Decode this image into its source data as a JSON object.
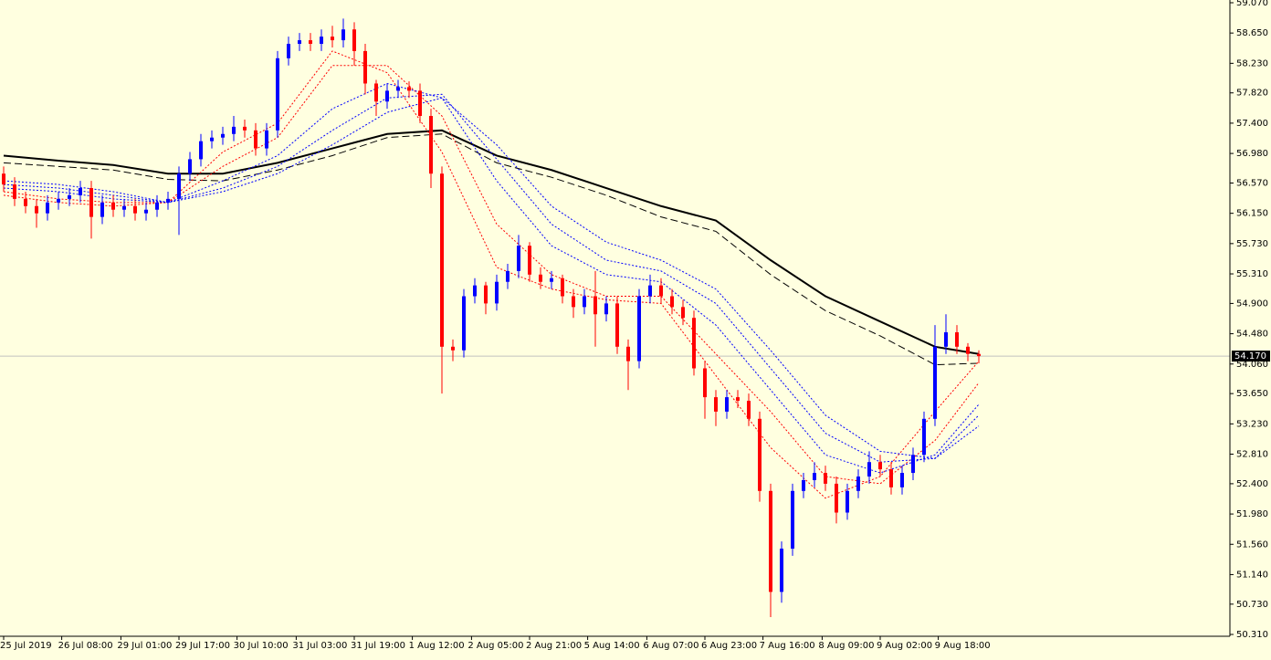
{
  "chart_data": {
    "type": "candlestick",
    "background": "#ffffe0",
    "up_color": "#0000ff",
    "down_color": "#ff0000",
    "candles": {
      "open": [
        56.7,
        56.55,
        56.35,
        56.25,
        56.15,
        56.3,
        56.35,
        56.4,
        56.5,
        56.1,
        56.3,
        56.2,
        56.25,
        56.15,
        56.2,
        56.3,
        56.35,
        56.7,
        56.9,
        57.15,
        57.2,
        57.25,
        57.35,
        57.3,
        57.05,
        57.3,
        58.3,
        58.5,
        58.55,
        58.5,
        58.6,
        58.55,
        58.7,
        58.4,
        57.95,
        57.7,
        57.85,
        57.9,
        57.85,
        57.5,
        56.7,
        54.3,
        54.25,
        55.0,
        55.15,
        54.9,
        55.2,
        55.35,
        55.7,
        55.3,
        55.2,
        55.25,
        55.0,
        54.85,
        55.0,
        54.75,
        54.9,
        54.3,
        54.1,
        55.0,
        55.15,
        55.0,
        54.85,
        54.7,
        54.0,
        53.6,
        53.4,
        53.6,
        53.55,
        53.3,
        52.3,
        50.9,
        51.5,
        52.3,
        52.45,
        52.55,
        52.4,
        52.0,
        52.3,
        52.5,
        52.7,
        52.6,
        52.35,
        52.55,
        52.8,
        53.3,
        54.3,
        54.5,
        54.3,
        54.2
      ],
      "high": [
        56.8,
        56.65,
        56.45,
        56.35,
        56.4,
        56.45,
        56.5,
        56.6,
        56.6,
        56.4,
        56.4,
        56.35,
        56.35,
        56.3,
        56.4,
        56.45,
        56.8,
        57.0,
        57.25,
        57.3,
        57.35,
        57.5,
        57.45,
        57.4,
        57.4,
        58.4,
        58.6,
        58.65,
        58.65,
        58.7,
        58.75,
        58.85,
        58.8,
        58.5,
        58.0,
        57.95,
        58.0,
        57.98,
        57.95,
        57.6,
        56.8,
        54.4,
        55.1,
        55.25,
        55.2,
        55.3,
        55.45,
        55.85,
        55.75,
        55.4,
        55.35,
        55.3,
        55.1,
        55.1,
        55.35,
        55.0,
        55.0,
        54.4,
        55.1,
        55.3,
        55.25,
        55.1,
        54.95,
        54.8,
        54.1,
        53.7,
        53.7,
        53.7,
        53.65,
        53.4,
        52.4,
        51.6,
        52.4,
        52.55,
        52.7,
        52.65,
        52.5,
        52.4,
        52.6,
        52.85,
        52.8,
        52.7,
        52.65,
        52.9,
        53.4,
        54.6,
        54.75,
        54.6,
        54.35,
        54.25
      ],
      "low": [
        56.45,
        56.25,
        56.15,
        55.95,
        56.05,
        56.2,
        56.25,
        56.3,
        55.8,
        56.0,
        56.1,
        56.1,
        56.05,
        56.05,
        56.1,
        56.2,
        55.85,
        56.6,
        56.8,
        57.05,
        57.1,
        57.15,
        57.2,
        56.95,
        56.95,
        57.2,
        58.2,
        58.4,
        58.4,
        58.4,
        58.45,
        58.45,
        58.2,
        57.8,
        57.5,
        57.6,
        57.75,
        57.75,
        57.4,
        56.5,
        53.65,
        54.1,
        54.15,
        54.9,
        54.75,
        54.8,
        55.1,
        55.25,
        55.2,
        55.1,
        55.1,
        54.9,
        54.7,
        54.75,
        54.3,
        54.65,
        54.2,
        53.7,
        54.0,
        54.9,
        54.9,
        54.75,
        54.6,
        53.9,
        53.3,
        53.2,
        53.3,
        53.45,
        53.2,
        52.15,
        50.55,
        50.75,
        51.4,
        52.2,
        52.35,
        52.3,
        51.85,
        51.9,
        52.2,
        52.4,
        52.5,
        52.25,
        52.25,
        52.45,
        52.7,
        53.2,
        54.2,
        54.2,
        54.1,
        54.07
      ],
      "close": [
        56.55,
        56.35,
        56.25,
        56.15,
        56.3,
        56.35,
        56.4,
        56.5,
        56.1,
        56.3,
        56.2,
        56.25,
        56.15,
        56.2,
        56.3,
        56.35,
        56.7,
        56.9,
        57.15,
        57.2,
        57.25,
        57.35,
        57.3,
        57.05,
        57.3,
        58.3,
        58.5,
        58.55,
        58.5,
        58.6,
        58.55,
        58.7,
        58.4,
        57.95,
        57.7,
        57.85,
        57.9,
        57.85,
        57.5,
        56.7,
        54.3,
        54.25,
        55.0,
        55.15,
        54.9,
        55.2,
        55.35,
        55.7,
        55.3,
        55.2,
        55.25,
        55.0,
        54.85,
        55.0,
        54.75,
        54.9,
        54.3,
        54.1,
        55.0,
        55.15,
        55.0,
        54.85,
        54.7,
        54.0,
        53.6,
        53.4,
        53.6,
        53.55,
        53.3,
        52.3,
        50.9,
        51.5,
        52.3,
        52.45,
        52.55,
        52.4,
        52.0,
        52.3,
        52.5,
        52.7,
        52.6,
        52.35,
        52.55,
        52.8,
        53.3,
        54.3,
        54.5,
        54.3,
        54.2,
        54.17
      ]
    },
    "series": [
      {
        "color": "#000000",
        "style": "solid",
        "x": [
          0,
          5,
          10,
          15,
          20,
          25,
          30,
          35,
          40,
          45,
          50,
          55,
          60,
          65,
          70,
          75,
          80,
          85,
          89
        ],
        "values": [
          56.95,
          56.88,
          56.82,
          56.7,
          56.7,
          56.85,
          57.05,
          57.25,
          57.3,
          56.95,
          56.75,
          56.5,
          56.25,
          56.05,
          55.5,
          55.0,
          54.65,
          54.3,
          54.2
        ]
      },
      {
        "color": "#000000",
        "style": "dashed",
        "x": [
          0,
          5,
          10,
          15,
          20,
          25,
          30,
          35,
          40,
          45,
          50,
          55,
          60,
          65,
          70,
          75,
          80,
          85,
          89
        ],
        "values": [
          56.85,
          56.8,
          56.75,
          56.62,
          56.6,
          56.75,
          56.95,
          57.2,
          57.25,
          56.85,
          56.65,
          56.4,
          56.1,
          55.9,
          55.3,
          54.8,
          54.45,
          54.05,
          54.07
        ]
      },
      {
        "color": "#ff0000",
        "style": "dotted",
        "x": [
          0,
          5,
          10,
          15,
          20,
          25,
          30,
          35,
          40,
          45,
          50,
          55,
          60,
          65,
          70,
          75,
          80,
          85,
          89
        ],
        "values": [
          56.4,
          56.3,
          56.25,
          56.3,
          57.0,
          57.4,
          58.4,
          58.1,
          57.0,
          55.4,
          55.1,
          54.95,
          54.9,
          53.9,
          52.9,
          52.2,
          52.5,
          53.4,
          54.1
        ]
      },
      {
        "color": "#ff0000",
        "style": "dotted",
        "x": [
          0,
          5,
          10,
          15,
          20,
          25,
          30,
          35,
          40,
          45,
          50,
          55,
          60,
          65,
          70,
          75,
          80,
          85,
          89
        ],
        "values": [
          56.45,
          56.35,
          56.3,
          56.3,
          56.8,
          57.2,
          58.2,
          58.2,
          57.5,
          56.0,
          55.3,
          55.0,
          55.0,
          54.2,
          53.4,
          52.5,
          52.4,
          53.0,
          53.8
        ]
      },
      {
        "color": "#0000ff",
        "style": "dotted",
        "x": [
          0,
          5,
          10,
          15,
          20,
          25,
          30,
          35,
          40,
          45,
          50,
          55,
          60,
          65,
          70,
          75,
          80,
          85,
          89
        ],
        "values": [
          56.5,
          56.45,
          56.35,
          56.3,
          56.6,
          56.95,
          57.6,
          57.95,
          57.75,
          56.6,
          55.7,
          55.3,
          55.2,
          54.6,
          53.7,
          52.8,
          52.55,
          52.8,
          53.5
        ]
      },
      {
        "color": "#0000ff",
        "style": "dotted",
        "x": [
          0,
          5,
          10,
          15,
          20,
          25,
          30,
          35,
          40,
          45,
          50,
          55,
          60,
          65,
          70,
          75,
          80,
          85,
          89
        ],
        "values": [
          56.55,
          56.5,
          56.4,
          56.3,
          56.5,
          56.8,
          57.3,
          57.75,
          57.8,
          56.9,
          56.0,
          55.5,
          55.35,
          54.9,
          54.0,
          53.1,
          52.7,
          52.75,
          53.35
        ]
      },
      {
        "color": "#0000ff",
        "style": "dotted",
        "x": [
          0,
          5,
          10,
          15,
          20,
          25,
          30,
          35,
          40,
          45,
          50,
          55,
          60,
          65,
          70,
          75,
          80,
          85,
          89
        ],
        "values": [
          56.6,
          56.55,
          56.45,
          56.3,
          56.45,
          56.7,
          57.1,
          57.55,
          57.75,
          57.1,
          56.25,
          55.75,
          55.5,
          55.1,
          54.25,
          53.35,
          52.85,
          52.75,
          53.2
        ]
      }
    ],
    "current_price": {
      "value": 54.17,
      "label": "54.170"
    },
    "ylim": [
      50.31,
      59.07
    ],
    "yticks": [
      {
        "value": 59.07,
        "label": "59.070"
      },
      {
        "value": 58.65,
        "label": "58.650"
      },
      {
        "value": 58.23,
        "label": "58.230"
      },
      {
        "value": 57.82,
        "label": "57.820"
      },
      {
        "value": 57.4,
        "label": "57.400"
      },
      {
        "value": 56.98,
        "label": "56.980"
      },
      {
        "value": 56.57,
        "label": "56.570"
      },
      {
        "value": 56.15,
        "label": "56.150"
      },
      {
        "value": 55.73,
        "label": "55.730"
      },
      {
        "value": 55.31,
        "label": "55.310"
      },
      {
        "value": 54.9,
        "label": "54.900"
      },
      {
        "value": 54.48,
        "label": "54.480"
      },
      {
        "value": 54.06,
        "label": "54.060"
      },
      {
        "value": 53.65,
        "label": "53.650"
      },
      {
        "value": 53.23,
        "label": "53.230"
      },
      {
        "value": 52.81,
        "label": "52.810"
      },
      {
        "value": 52.4,
        "label": "52.400"
      },
      {
        "value": 51.98,
        "label": "51.980"
      },
      {
        "value": 51.56,
        "label": "51.560"
      },
      {
        "value": 51.14,
        "label": "51.140"
      },
      {
        "value": 50.73,
        "label": "50.730"
      },
      {
        "value": 50.31,
        "label": "50.310"
      }
    ],
    "xticks": [
      {
        "value": 0,
        "label": "25 Jul 2019"
      },
      {
        "value": 5.3,
        "label": "26 Jul 08:00"
      },
      {
        "value": 10.7,
        "label": "29 Jul 01:00"
      },
      {
        "value": 16,
        "label": "29 Jul 17:00"
      },
      {
        "value": 21.3,
        "label": "30 Jul 10:00"
      },
      {
        "value": 26.7,
        "label": "31 Jul 03:00"
      },
      {
        "value": 32,
        "label": "31 Jul 19:00"
      },
      {
        "value": 37.3,
        "label": "1 Aug 12:00"
      },
      {
        "value": 42.7,
        "label": "2 Aug 05:00"
      },
      {
        "value": 48,
        "label": "2 Aug 21:00"
      },
      {
        "value": 53.3,
        "label": "5 Aug 14:00"
      },
      {
        "value": 58.7,
        "label": "6 Aug 07:00"
      },
      {
        "value": 64,
        "label": "6 Aug 23:00"
      },
      {
        "value": 69.3,
        "label": "7 Aug 16:00"
      },
      {
        "value": 74.7,
        "label": "8 Aug 09:00"
      },
      {
        "value": 80,
        "label": "9 Aug 02:00"
      },
      {
        "value": 85.3,
        "label": "9 Aug 18:00"
      }
    ]
  }
}
